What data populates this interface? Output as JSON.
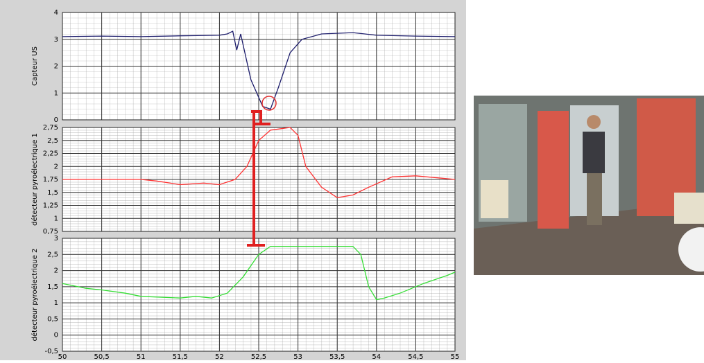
{
  "chart_data": [
    {
      "type": "line",
      "y_label": "Capteur US",
      "xlim": [
        50,
        55
      ],
      "xticks": [
        50,
        50.5,
        51,
        51.5,
        52,
        52.5,
        53,
        53.5,
        54,
        54.5,
        55
      ],
      "ylim": [
        0,
        4
      ],
      "yticks": [
        0,
        1,
        2,
        3,
        4
      ],
      "grid": true,
      "x": [
        50,
        50.5,
        51,
        51.5,
        52,
        52.1,
        52.17,
        52.22,
        52.27,
        52.4,
        52.55,
        52.65,
        52.75,
        52.9,
        53.05,
        53.3,
        53.7,
        54,
        54.5,
        55
      ],
      "series": [
        {
          "color": "#1c1c6b",
          "values": [
            3.1,
            3.12,
            3.1,
            3.13,
            3.15,
            3.2,
            3.3,
            2.6,
            3.2,
            1.5,
            0.5,
            0.4,
            1.2,
            2.5,
            3.0,
            3.2,
            3.25,
            3.15,
            3.12,
            3.1
          ]
        }
      ]
    },
    {
      "type": "line",
      "y_label": "détecteur pyroélectrique 1",
      "xlim": [
        50,
        55
      ],
      "xticks": [
        50,
        50.5,
        51,
        51.5,
        52,
        52.5,
        53,
        53.5,
        54,
        54.5,
        55
      ],
      "ylim": [
        0.75,
        2.75
      ],
      "yticks": [
        {
          "value": 0.75,
          "label": "0,75"
        },
        1,
        {
          "value": 1.25,
          "label": "1,25"
        },
        {
          "value": 1.5,
          "label": "1,5"
        },
        {
          "value": 1.75,
          "label": "1,75"
        },
        2,
        {
          "value": 2.25,
          "label": "2,25"
        },
        {
          "value": 2.5,
          "label": "2,5"
        },
        {
          "value": 2.75,
          "label": "2,75"
        }
      ],
      "grid": true,
      "x": [
        50,
        50.5,
        51,
        51.2,
        51.5,
        51.8,
        52,
        52.2,
        52.35,
        52.5,
        52.65,
        52.9,
        53,
        53.1,
        53.3,
        53.5,
        53.7,
        53.9,
        54.2,
        54.5,
        55
      ],
      "series": [
        {
          "color": "#ff3333",
          "values": [
            1.75,
            1.75,
            1.75,
            1.72,
            1.65,
            1.68,
            1.65,
            1.75,
            2.0,
            2.5,
            2.7,
            2.75,
            2.6,
            2.0,
            1.6,
            1.4,
            1.45,
            1.6,
            1.8,
            1.82,
            1.75
          ]
        }
      ]
    },
    {
      "type": "line",
      "y_label": "détecteur pyroélectrique 2",
      "xlim": [
        50,
        55
      ],
      "xticks": [
        50,
        {
          "value": 50.5,
          "label": "50,5"
        },
        51,
        {
          "value": 51.5,
          "label": "51,5"
        },
        52,
        {
          "value": 52.5,
          "label": "52,5"
        },
        53,
        {
          "value": 53.5,
          "label": "53,5"
        },
        54,
        {
          "value": 54.5,
          "label": "54,5"
        },
        55
      ],
      "ylim": [
        -0.5,
        3
      ],
      "yticks": [
        {
          "value": -0.5,
          "label": "-0,5"
        },
        0,
        {
          "value": 0.5,
          "label": "0,5"
        },
        1,
        {
          "value": 1.5,
          "label": "1,5"
        },
        2,
        {
          "value": 2.5,
          "label": "2,5"
        },
        3
      ],
      "grid": true,
      "x": [
        50,
        50.3,
        50.5,
        50.8,
        51,
        51.5,
        51.7,
        51.9,
        52.1,
        52.3,
        52.5,
        52.65,
        53.7,
        53.8,
        53.9,
        54,
        54.1,
        54.3,
        54.6,
        54.9,
        55
      ],
      "series": [
        {
          "color": "#33dd33",
          "values": [
            1.6,
            1.45,
            1.4,
            1.3,
            1.2,
            1.15,
            1.2,
            1.15,
            1.3,
            1.8,
            2.5,
            2.75,
            2.75,
            2.5,
            1.5,
            1.1,
            1.15,
            1.3,
            1.6,
            1.85,
            1.95
          ]
        }
      ]
    }
  ]
}
